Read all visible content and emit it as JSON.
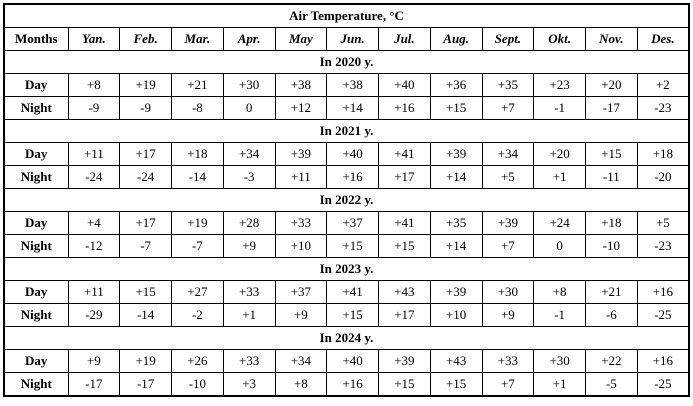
{
  "chart_data": {
    "type": "table",
    "title": "Air Temperature, °C",
    "months_label": "Months",
    "months": [
      "Yan.",
      "Feb.",
      "Mar.",
      "Apr.",
      "May",
      "Jun.",
      "Jul.",
      "Aug.",
      "Sept.",
      "Okt.",
      "Nov.",
      "Des."
    ],
    "day_label": "Day",
    "night_label": "Night",
    "years": [
      {
        "year": 2020,
        "label": "In 2020 y.",
        "day": [
          "+8",
          "+19",
          "+21",
          "+30",
          "+38",
          "+38",
          "+40",
          "+36",
          "+35",
          "+23",
          "+20",
          "+2"
        ],
        "night": [
          "-9",
          "-9",
          "-8",
          "0",
          "+12",
          "+14",
          "+16",
          "+15",
          "+7",
          "-1",
          "-17",
          "-23"
        ]
      },
      {
        "year": 2021,
        "label": "In 2021 y.",
        "day": [
          "+11",
          "+17",
          "+18",
          "+34",
          "+39",
          "+40",
          "+41",
          "+39",
          "+34",
          "+20",
          "+15",
          "+18"
        ],
        "night": [
          "-24",
          "-24",
          "-14",
          "-3",
          "+11",
          "+16",
          "+17",
          "+14",
          "+5",
          "+1",
          "-11",
          "-20"
        ]
      },
      {
        "year": 2022,
        "label": "In 2022 y.",
        "day": [
          "+4",
          "+17",
          "+19",
          "+28",
          "+33",
          "+37",
          "+41",
          "+35",
          "+39",
          "+24",
          "+18",
          "+5"
        ],
        "night": [
          "-12",
          "-7",
          "-7",
          "+9",
          "+10",
          "+15",
          "+15",
          "+14",
          "+7",
          "0",
          "-10",
          "-23"
        ]
      },
      {
        "year": 2023,
        "label": "In 2023 y.",
        "day": [
          "+11",
          "+15",
          "+27",
          "+33",
          "+37",
          "+41",
          "+43",
          "+39",
          "+30",
          "+8",
          "+21",
          "+16"
        ],
        "night": [
          "-29",
          "-14",
          "-2",
          "+1",
          "+9",
          "+15",
          "+17",
          "+10",
          "+9",
          "-1",
          "-6",
          "-25"
        ]
      },
      {
        "year": 2024,
        "label": "In 2024 y.",
        "day": [
          "+9",
          "+19",
          "+26",
          "+33",
          "+34",
          "+40",
          "+39",
          "+43",
          "+33",
          "+30",
          "+22",
          "+16"
        ],
        "night": [
          "-17",
          "-17",
          "-10",
          "+3",
          "+8",
          "+16",
          "+15",
          "+15",
          "+7",
          "+1",
          "-5",
          "-25"
        ]
      }
    ],
    "layout_hints": {
      "grid": "all-borders",
      "border_color": "#000000",
      "text_color": "#000000",
      "background": "#ffffff"
    }
  }
}
